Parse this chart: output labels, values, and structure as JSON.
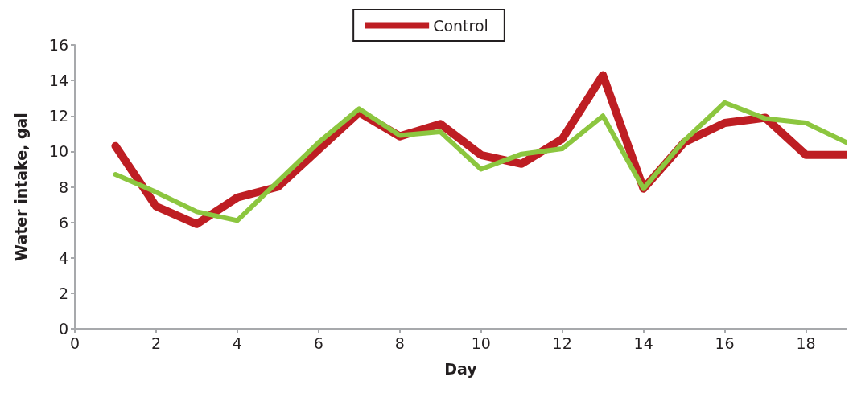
{
  "chart_data": {
    "type": "line",
    "xlabel": "Day",
    "ylabel": "Water intake, gal",
    "x": [
      1,
      2,
      3,
      4,
      5,
      6,
      7,
      8,
      9,
      10,
      11,
      12,
      13,
      14,
      15,
      16,
      17,
      18,
      19
    ],
    "series": [
      {
        "name": "Control",
        "color": "#be1e23",
        "values": [
          10.3,
          6.9,
          5.9,
          7.4,
          8.0,
          10.1,
          12.2,
          10.85,
          11.55,
          9.8,
          9.3,
          10.7,
          14.3,
          7.9,
          10.5,
          11.6,
          11.9,
          9.8,
          9.8
        ]
      },
      {
        "color": "#8cc63f",
        "values": [
          8.7,
          7.7,
          6.6,
          6.1,
          8.3,
          10.5,
          12.4,
          10.9,
          11.1,
          9.0,
          9.85,
          10.15,
          12.0,
          7.9,
          10.6,
          12.75,
          11.85,
          11.6,
          10.5
        ]
      }
    ],
    "xlim": [
      0,
      19
    ],
    "xticks": [
      0,
      2,
      4,
      6,
      8,
      10,
      12,
      14,
      16,
      18
    ],
    "ylim": [
      0,
      16
    ],
    "yticks": [
      0,
      2,
      4,
      6,
      8,
      10,
      12,
      14,
      16
    ],
    "grid": false,
    "legend": "top",
    "marker": "none",
    "line_style": "solid"
  }
}
